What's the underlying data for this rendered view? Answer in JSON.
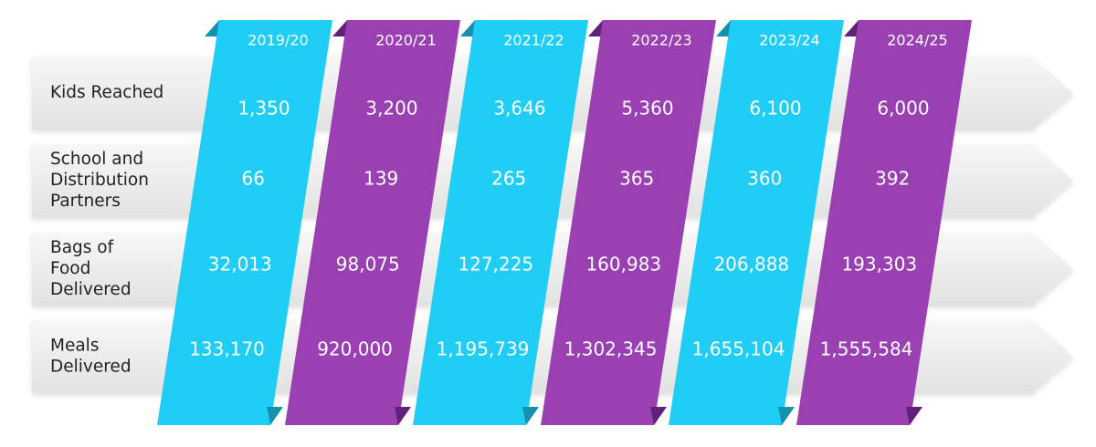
{
  "table": {
    "columns": [
      "2019/20",
      "2020/21",
      "2021/22",
      "2022/23",
      "2023/24",
      "2024/25"
    ],
    "rows": [
      {
        "label": [
          "Kids Reached"
        ],
        "values": [
          "1,350",
          "3,200",
          "3,646",
          "5,360",
          "6,100",
          "6,000"
        ]
      },
      {
        "label": [
          "School and",
          "Distribution",
          "Partners"
        ],
        "values": [
          "66",
          "139",
          "265",
          "365",
          "360",
          "392"
        ]
      },
      {
        "label": [
          "Bags of",
          "Food",
          "Delivered"
        ],
        "values": [
          "32,013",
          "98,075",
          "127,225",
          "160,983",
          "206,888",
          "193,303"
        ]
      },
      {
        "label": [
          "Meals",
          "Delivered"
        ],
        "values": [
          "133,170",
          "920,000",
          "1,195,739",
          "1,302,345",
          "1,655,104",
          "1,555,584"
        ]
      }
    ]
  }
}
